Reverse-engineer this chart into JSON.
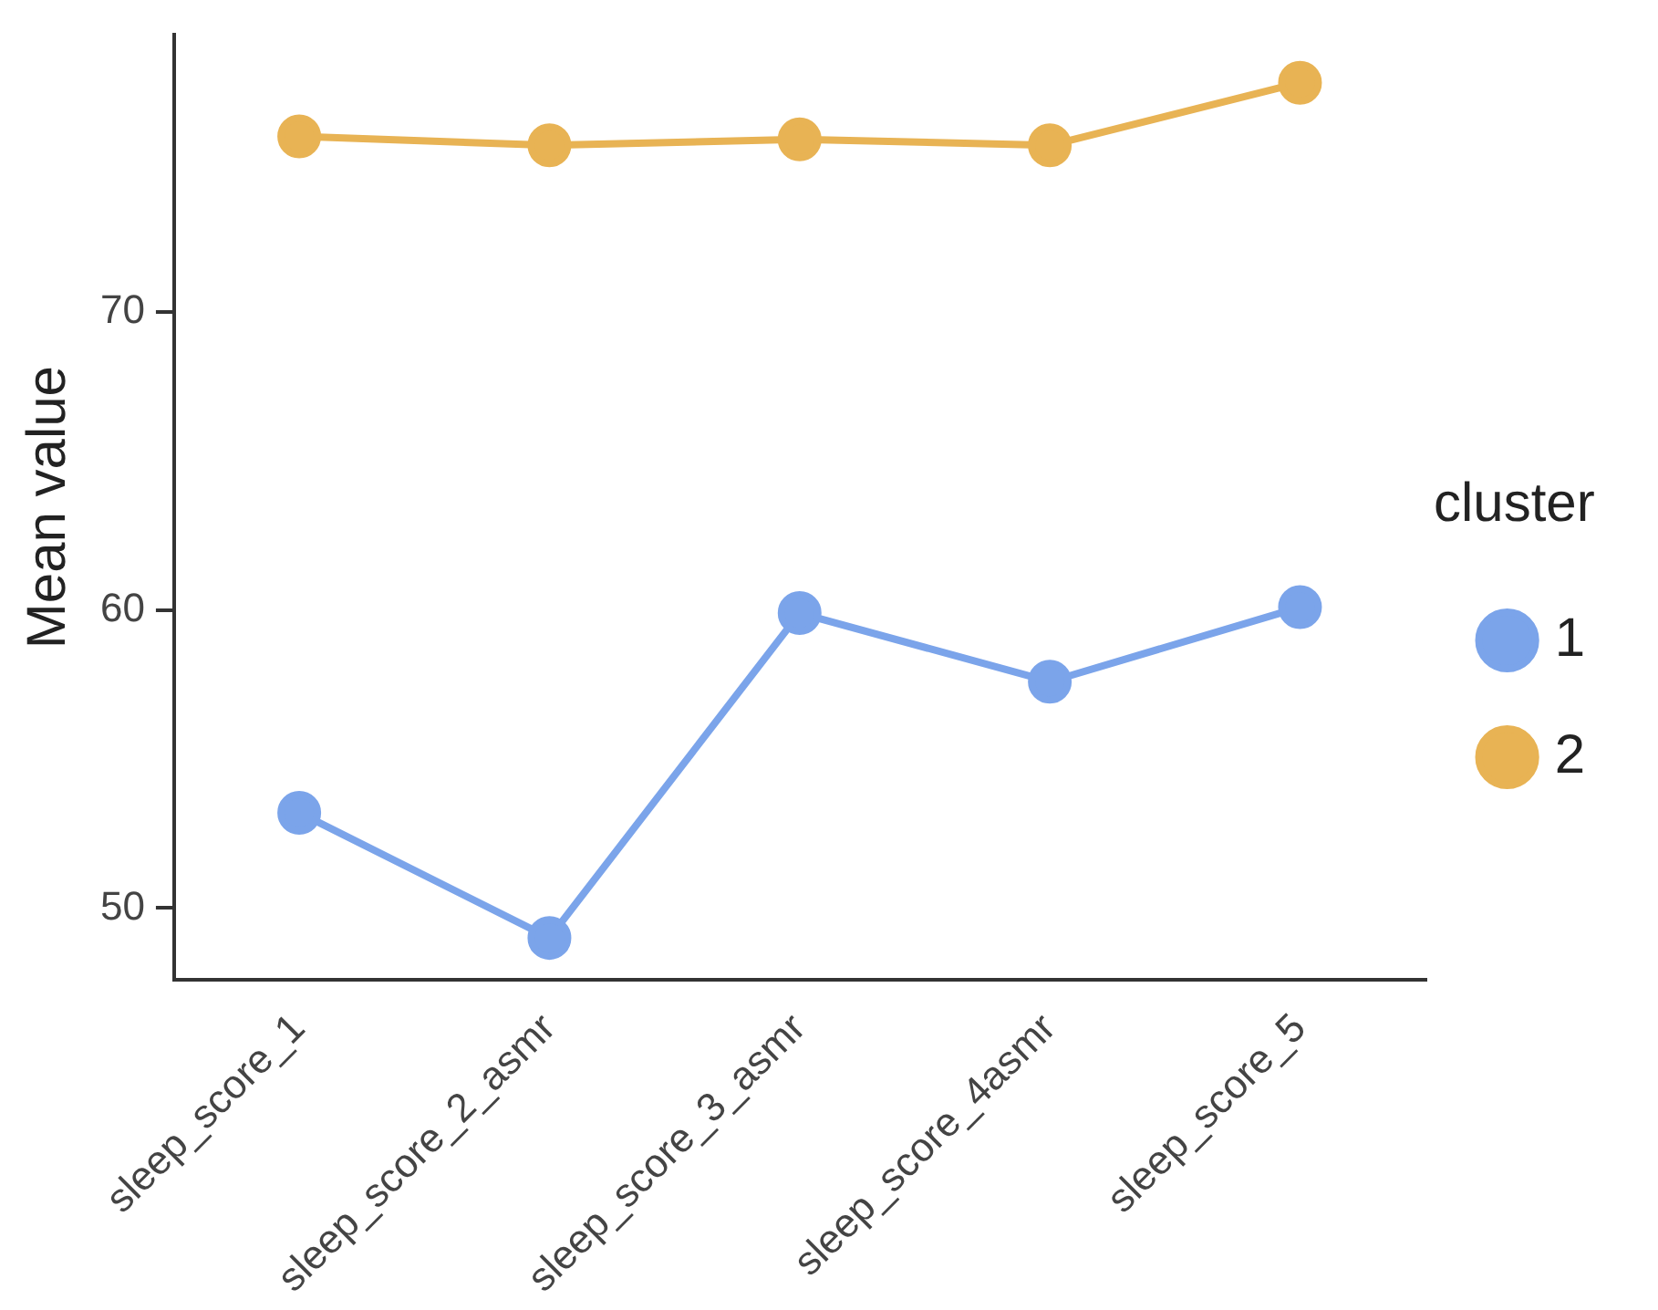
{
  "chart_data": {
    "type": "line",
    "categories": [
      "sleep_score_1",
      "sleep_score_2_asmr",
      "sleep_score_3_asmr",
      "sleep_score_4asmr",
      "sleep_score_5"
    ],
    "series": [
      {
        "name": "1",
        "color": "#7ba4ea",
        "values": [
          53.2,
          49.0,
          59.9,
          57.6,
          60.1
        ]
      },
      {
        "name": "2",
        "color": "#e8b354",
        "values": [
          75.9,
          75.6,
          75.8,
          75.6,
          77.7
        ]
      }
    ],
    "ylabel": "Mean value",
    "ylim": [
      47.6,
      79.3
    ],
    "yticks": [
      50,
      60,
      70
    ],
    "legend": "right",
    "legend_title": "cluster",
    "marker": "circle"
  }
}
